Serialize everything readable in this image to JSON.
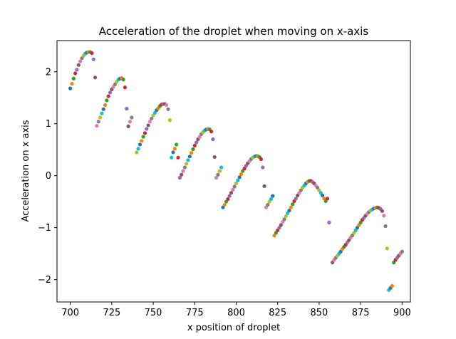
{
  "chart_data": {
    "type": "scatter",
    "title": "Acceleration of the droplet when moving on x-axis",
    "xlabel": "x position of droplet",
    "ylabel": "Acceleration on x axis",
    "xlim": [
      692,
      905
    ],
    "ylim": [
      -2.43,
      2.6
    ],
    "xticks": [
      {
        "value": 700,
        "label": "700"
      },
      {
        "value": 725,
        "label": "725"
      },
      {
        "value": 750,
        "label": "750"
      },
      {
        "value": 775,
        "label": "775"
      },
      {
        "value": 800,
        "label": "800"
      },
      {
        "value": 825,
        "label": "825"
      },
      {
        "value": 850,
        "label": "850"
      },
      {
        "value": 875,
        "label": "875"
      },
      {
        "value": 900,
        "label": "900"
      }
    ],
    "yticks": [
      {
        "value": -2,
        "label": "−2"
      },
      {
        "value": -1,
        "label": "−1"
      },
      {
        "value": 0,
        "label": "0"
      },
      {
        "value": 1,
        "label": "1"
      },
      {
        "value": 2,
        "label": "2"
      }
    ],
    "grid": false,
    "legend": "none",
    "palette": [
      "#1f77b4",
      "#ff7f0e",
      "#2ca02c",
      "#d62728",
      "#9467bd",
      "#8c564b",
      "#e377c2",
      "#7f7f7f",
      "#bcbd22",
      "#17becf"
    ],
    "segments": [
      {
        "x": [
          700,
          701,
          702,
          703,
          704,
          705,
          706,
          707,
          708,
          709,
          710,
          711,
          712,
          713,
          714,
          715
        ],
        "y": [
          1.68,
          1.77,
          1.87,
          1.97,
          2.04,
          2.13,
          2.2,
          2.26,
          2.31,
          2.35,
          2.37,
          2.38,
          2.38,
          2.36,
          2.24,
          1.89
        ]
      },
      {
        "x": [
          716,
          717,
          718,
          719,
          720,
          721,
          722,
          723,
          724,
          725,
          726,
          727,
          728,
          729,
          730,
          731,
          732,
          733,
          734,
          735,
          736,
          737
        ],
        "y": [
          0.96,
          1.04,
          1.12,
          1.2,
          1.28,
          1.36,
          1.45,
          1.53,
          1.6,
          1.66,
          1.71,
          1.76,
          1.81,
          1.85,
          1.87,
          1.88,
          1.85,
          1.7,
          1.29,
          0.95,
          1.04,
          1.12
        ]
      },
      {
        "x": [
          740,
          741,
          742,
          743,
          744,
          745,
          746,
          747,
          748,
          749,
          750,
          751,
          752,
          753,
          754,
          755,
          756,
          757,
          758,
          759,
          760,
          761,
          762,
          763,
          764
        ],
        "y": [
          0.45,
          0.52,
          0.6,
          0.67,
          0.75,
          0.82,
          0.9,
          0.97,
          1.04,
          1.1,
          1.16,
          1.21,
          1.26,
          1.3,
          1.34,
          1.37,
          1.38,
          1.38,
          1.36,
          1.28,
          1.07,
          0.35,
          0.45,
          0.52,
          0.6
        ]
      },
      {
        "x": [
          765,
          766,
          767,
          768,
          769,
          770,
          771,
          772,
          773,
          774,
          775,
          776,
          777,
          778,
          779,
          780,
          781,
          782,
          783,
          784,
          785,
          786,
          787,
          788,
          789,
          790,
          791
        ],
        "y": [
          0.35,
          -0.04,
          0.02,
          0.09,
          0.16,
          0.23,
          0.3,
          0.37,
          0.44,
          0.51,
          0.58,
          0.64,
          0.7,
          0.75,
          0.8,
          0.84,
          0.87,
          0.89,
          0.9,
          0.89,
          0.85,
          0.7,
          0.36,
          -0.04,
          0.02,
          0.09,
          0.16
        ]
      },
      {
        "x": [
          792,
          793,
          794,
          795,
          796,
          797,
          798,
          799,
          800,
          801,
          802,
          803,
          804,
          805,
          806,
          807,
          808,
          809,
          810,
          811,
          812,
          813,
          814,
          815,
          816,
          817,
          818,
          819,
          820,
          821,
          822
        ],
        "y": [
          -0.61,
          -0.56,
          -0.5,
          -0.45,
          -0.39,
          -0.33,
          -0.27,
          -0.21,
          -0.15,
          -0.09,
          -0.03,
          0.03,
          0.09,
          0.14,
          0.19,
          0.24,
          0.28,
          0.32,
          0.35,
          0.37,
          0.38,
          0.38,
          0.36,
          0.32,
          0.16,
          -0.2,
          -0.61,
          -0.56,
          -0.5,
          -0.45,
          -0.39
        ]
      },
      {
        "x": [
          823,
          824,
          825,
          826,
          827,
          828,
          829,
          830,
          831,
          832,
          833,
          834,
          835,
          836,
          837,
          838,
          839,
          840,
          841,
          842,
          843,
          844,
          845,
          846,
          847,
          848,
          849,
          850,
          851,
          852,
          853,
          854,
          855,
          856
        ],
        "y": [
          -1.15,
          -1.1,
          -1.05,
          -1.0,
          -0.95,
          -0.89,
          -0.84,
          -0.78,
          -0.72,
          -0.67,
          -0.61,
          -0.55,
          -0.49,
          -0.44,
          -0.38,
          -0.33,
          -0.28,
          -0.23,
          -0.19,
          -0.15,
          -0.12,
          -0.1,
          -0.1,
          -0.12,
          -0.15,
          -0.19,
          -0.23,
          -0.28,
          -0.33,
          -0.38,
          -0.44,
          -0.49,
          -0.44,
          -0.9
        ]
      },
      {
        "x": [
          858,
          859,
          860,
          861,
          862,
          863,
          864,
          865,
          866,
          867,
          868,
          869,
          870,
          871,
          872,
          873,
          874,
          875,
          876,
          877,
          878,
          879,
          880,
          881,
          882,
          883,
          884,
          885,
          886,
          887,
          888,
          889,
          890,
          891,
          892,
          893,
          894,
          895,
          896,
          897,
          898,
          899,
          900
        ],
        "y": [
          -1.67,
          -1.62,
          -1.58,
          -1.54,
          -1.5,
          -1.46,
          -1.41,
          -1.37,
          -1.33,
          -1.28,
          -1.24,
          -1.19,
          -1.15,
          -1.1,
          -1.05,
          -1.0,
          -0.95,
          -0.9,
          -0.85,
          -0.81,
          -0.77,
          -0.73,
          -0.7,
          -0.67,
          -0.65,
          -0.63,
          -0.62,
          -0.61,
          -0.62,
          -0.64,
          -0.68,
          -0.77,
          -0.97,
          -1.4,
          -2.2,
          -2.16,
          -2.12,
          -1.67,
          -1.62,
          -1.58,
          -1.54,
          -1.5,
          -1.46
        ]
      }
    ]
  }
}
